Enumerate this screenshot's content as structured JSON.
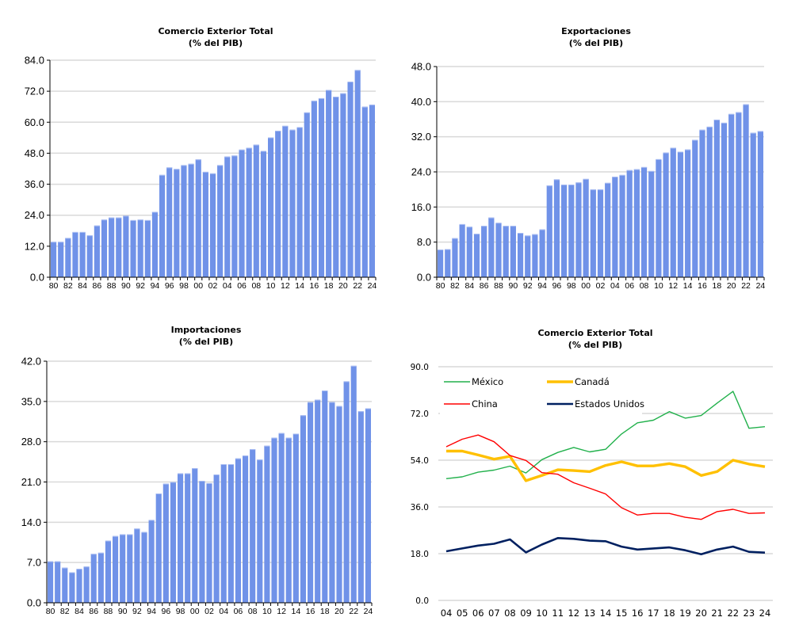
{
  "bar_color": "#7092e8",
  "chart_data": [
    {
      "type": "bar",
      "title": "Comercio Exterior Total",
      "subtitle": "(% del PIB)",
      "xlabel": "",
      "ylabel": "",
      "ylim": [
        0,
        84
      ],
      "yticks": [
        "0.0",
        "12.0",
        "24.0",
        "36.0",
        "48.0",
        "60.0",
        "72.0",
        "84.0"
      ],
      "ytick_values": [
        0,
        12,
        24,
        36,
        48,
        60,
        72,
        84
      ],
      "grid": true,
      "categories": [
        "80",
        "81",
        "82",
        "83",
        "84",
        "85",
        "86",
        "87",
        "88",
        "89",
        "90",
        "91",
        "92",
        "93",
        "94",
        "95",
        "96",
        "97",
        "98",
        "99",
        "00",
        "01",
        "02",
        "03",
        "04",
        "05",
        "06",
        "07",
        "08",
        "09",
        "10",
        "11",
        "12",
        "13",
        "14",
        "15",
        "16",
        "17",
        "18",
        "19",
        "20",
        "21",
        "22",
        "23",
        "24"
      ],
      "xtick_labels_shown": [
        "80",
        "82",
        "84",
        "86",
        "88",
        "90",
        "92",
        "94",
        "96",
        "98",
        "00",
        "02",
        "04",
        "06",
        "08",
        "10",
        "12",
        "14",
        "16",
        "18",
        "20",
        "22",
        "24"
      ],
      "values": [
        13.7,
        13.7,
        15.2,
        17.5,
        17.5,
        16.2,
        20.0,
        22.3,
        23.1,
        23.1,
        23.8,
        22.1,
        22.3,
        22.1,
        25.3,
        39.6,
        42.5,
        41.9,
        43.4,
        43.9,
        45.6,
        40.8,
        40.2,
        43.4,
        46.7,
        47.1,
        49.4,
        50.1,
        51.3,
        48.9,
        54.1,
        56.7,
        58.6,
        57.1,
        58.1,
        63.8,
        68.3,
        69.3,
        72.5,
        69.9,
        71.2,
        75.7,
        80.2,
        66.0,
        66.8
      ]
    },
    {
      "type": "bar",
      "title": "Exportaciones",
      "subtitle": "(% del PIB)",
      "xlabel": "",
      "ylabel": "",
      "ylim": [
        0,
        48
      ],
      "yticks": [
        "0.0",
        "8.0",
        "16.0",
        "24.0",
        "32.0",
        "40.0",
        "48.0"
      ],
      "ytick_values": [
        0,
        8,
        16,
        24,
        32,
        40,
        48
      ],
      "grid": true,
      "categories": [
        "80",
        "81",
        "82",
        "83",
        "84",
        "85",
        "86",
        "87",
        "88",
        "89",
        "90",
        "91",
        "92",
        "93",
        "94",
        "95",
        "96",
        "97",
        "98",
        "99",
        "00",
        "01",
        "02",
        "03",
        "04",
        "05",
        "06",
        "07",
        "08",
        "09",
        "10",
        "11",
        "12",
        "13",
        "14",
        "15",
        "16",
        "17",
        "18",
        "19",
        "20",
        "21",
        "22",
        "23",
        "24"
      ],
      "xtick_labels_shown": [
        "80",
        "82",
        "84",
        "86",
        "88",
        "90",
        "92",
        "94",
        "96",
        "98",
        "00",
        "02",
        "04",
        "06",
        "08",
        "10",
        "12",
        "14",
        "16",
        "18",
        "20",
        "22",
        "24"
      ],
      "values": [
        6.3,
        6.4,
        8.9,
        12.1,
        11.5,
        9.9,
        11.7,
        13.6,
        12.4,
        11.7,
        11.7,
        10.1,
        9.5,
        9.8,
        10.9,
        20.9,
        22.3,
        21.1,
        21.1,
        21.6,
        22.4,
        20.0,
        20.0,
        21.5,
        22.9,
        23.3,
        24.4,
        24.6,
        25.1,
        24.2,
        26.9,
        28.4,
        29.5,
        28.6,
        29.1,
        31.3,
        33.6,
        34.3,
        35.9,
        35.2,
        37.2,
        37.6,
        39.4,
        32.9,
        33.3
      ]
    },
    {
      "type": "bar",
      "title": "Importaciones",
      "subtitle": "(% del PIB)",
      "xlabel": "",
      "ylabel": "",
      "ylim": [
        0,
        42
      ],
      "yticks": [
        "0.0",
        "7.0",
        "14.0",
        "21.0",
        "28.0",
        "35.0",
        "42.0"
      ],
      "ytick_values": [
        0,
        7,
        14,
        21,
        28,
        35,
        42
      ],
      "grid": true,
      "categories": [
        "80",
        "81",
        "82",
        "83",
        "84",
        "85",
        "86",
        "87",
        "88",
        "89",
        "90",
        "91",
        "92",
        "93",
        "94",
        "95",
        "96",
        "97",
        "98",
        "99",
        "00",
        "01",
        "02",
        "03",
        "04",
        "05",
        "06",
        "07",
        "08",
        "09",
        "10",
        "11",
        "12",
        "13",
        "14",
        "15",
        "16",
        "17",
        "18",
        "19",
        "20",
        "21",
        "22",
        "23",
        "24"
      ],
      "xtick_labels_shown": [
        "80",
        "82",
        "84",
        "86",
        "88",
        "90",
        "92",
        "94",
        "96",
        "98",
        "00",
        "02",
        "04",
        "06",
        "08",
        "10",
        "12",
        "14",
        "16",
        "18",
        "20",
        "22",
        "24"
      ],
      "values": [
        7.2,
        7.2,
        6.1,
        5.3,
        5.9,
        6.3,
        8.5,
        8.7,
        10.8,
        11.6,
        11.9,
        11.9,
        12.9,
        12.3,
        14.4,
        19.0,
        20.7,
        21.0,
        22.5,
        22.5,
        23.4,
        21.2,
        20.8,
        22.3,
        24.1,
        24.1,
        25.1,
        25.6,
        26.7,
        24.9,
        27.3,
        28.7,
        29.5,
        28.7,
        29.4,
        32.6,
        34.9,
        35.3,
        36.9,
        34.9,
        34.2,
        38.5,
        41.2,
        33.3,
        33.8
      ]
    },
    {
      "type": "line",
      "title": "Comercio Exterior Total",
      "subtitle": "(% del PIB)",
      "xlabel": "",
      "ylabel": "",
      "ylim": [
        0,
        90
      ],
      "yticks": [
        "0.0",
        "18.0",
        "36.0",
        "54.0",
        "72.0",
        "90.0"
      ],
      "ytick_values": [
        0,
        18,
        36,
        54,
        72,
        90
      ],
      "grid": true,
      "legend_position": "top-left",
      "categories": [
        "04",
        "05",
        "06",
        "07",
        "08",
        "09",
        "10",
        "11",
        "12",
        "13",
        "14",
        "15",
        "16",
        "17",
        "18",
        "19",
        "20",
        "21",
        "22",
        "23",
        "24"
      ],
      "series": [
        {
          "name": "México",
          "color": "#22b14c",
          "values": [
            46.9,
            47.6,
            49.4,
            50.2,
            51.7,
            49.1,
            54.2,
            57.0,
            58.9,
            57.2,
            58.2,
            64.1,
            68.4,
            69.4,
            72.7,
            70.2,
            71.2,
            76.0,
            80.5,
            66.3,
            66.9
          ]
        },
        {
          "name": "Canadá",
          "color": "#ffc000",
          "values": [
            57.5,
            57.5,
            56.0,
            54.4,
            55.5,
            46.1,
            48.1,
            50.3,
            50.0,
            49.6,
            52.0,
            53.4,
            51.8,
            51.8,
            52.7,
            51.5,
            48.1,
            49.6,
            54.0,
            52.5,
            51.5
          ]
        },
        {
          "name": "China",
          "color": "#ff0000",
          "values": [
            59.2,
            62.1,
            63.7,
            61.1,
            55.8,
            53.9,
            49.2,
            48.6,
            45.3,
            43.2,
            41.0,
            35.7,
            32.9,
            33.5,
            33.5,
            32.0,
            31.2,
            34.2,
            35.1,
            33.5,
            33.7
          ]
        },
        {
          "name": "Estados Unidos",
          "color": "#002060",
          "values": [
            18.9,
            20.0,
            21.1,
            21.8,
            23.5,
            18.5,
            21.5,
            24.0,
            23.7,
            23.0,
            22.8,
            20.7,
            19.6,
            20.0,
            20.4,
            19.3,
            17.8,
            19.6,
            20.7,
            18.7,
            18.4
          ]
        }
      ]
    }
  ]
}
